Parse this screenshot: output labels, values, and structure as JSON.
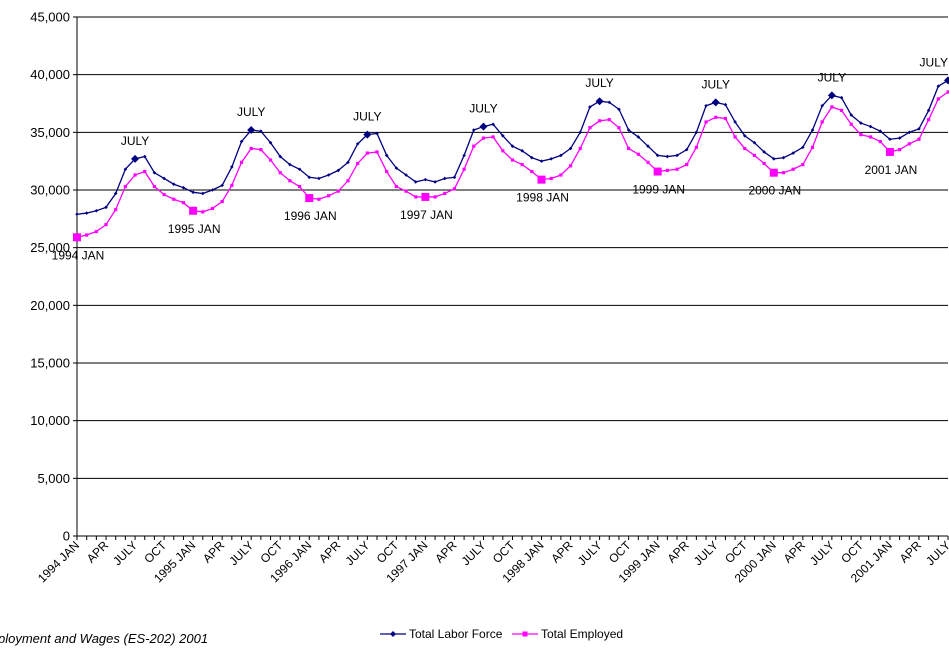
{
  "chart_data": {
    "type": "line",
    "title": "",
    "xlabel": "",
    "ylabel": "",
    "ylim": [
      0,
      45000
    ],
    "yticks": [
      0,
      5000,
      10000,
      15000,
      20000,
      25000,
      30000,
      35000,
      40000,
      45000
    ],
    "ytick_labels": [
      "0",
      "5,000",
      "10,000",
      "15,000",
      "20,000",
      "25,000",
      "30,000",
      "35,000",
      "40,000",
      "45,000"
    ],
    "grid": "horizontal",
    "legend_position": "bottom",
    "x_tick_labels": [
      {
        "index": 0,
        "label": "1994 JAN"
      },
      {
        "index": 3,
        "label": "APR"
      },
      {
        "index": 6,
        "label": "JULY"
      },
      {
        "index": 9,
        "label": "OCT"
      },
      {
        "index": 12,
        "label": "1995 JAN"
      },
      {
        "index": 15,
        "label": "APR"
      },
      {
        "index": 18,
        "label": "JULY"
      },
      {
        "index": 21,
        "label": "OCT"
      },
      {
        "index": 24,
        "label": "1996 JAN"
      },
      {
        "index": 27,
        "label": "APR"
      },
      {
        "index": 30,
        "label": "JULY"
      },
      {
        "index": 33,
        "label": "OCT"
      },
      {
        "index": 36,
        "label": "1997 JAN"
      },
      {
        "index": 39,
        "label": "APR"
      },
      {
        "index": 42,
        "label": "JULY"
      },
      {
        "index": 45,
        "label": "OCT"
      },
      {
        "index": 48,
        "label": "1998 JAN"
      },
      {
        "index": 51,
        "label": "APR"
      },
      {
        "index": 54,
        "label": "JULY"
      },
      {
        "index": 57,
        "label": "OCT"
      },
      {
        "index": 60,
        "label": "1999 JAN"
      },
      {
        "index": 63,
        "label": "APR"
      },
      {
        "index": 66,
        "label": "JULY"
      },
      {
        "index": 69,
        "label": "OCT"
      },
      {
        "index": 72,
        "label": "2000 JAN"
      },
      {
        "index": 75,
        "label": "APR"
      },
      {
        "index": 78,
        "label": "JULY"
      },
      {
        "index": 81,
        "label": "OCT"
      },
      {
        "index": 84,
        "label": "2001 JAN"
      },
      {
        "index": 87,
        "label": "APR"
      },
      {
        "index": 90,
        "label": "JULY"
      }
    ],
    "series": [
      {
        "name": "Total Labor Force",
        "color": "#000080",
        "marker": "diamond",
        "values": [
          27900,
          28000,
          28200,
          28500,
          29700,
          31800,
          32700,
          32900,
          31500,
          31000,
          30500,
          30200,
          29800,
          29700,
          30000,
          30400,
          32000,
          34200,
          35200,
          35100,
          34100,
          32900,
          32200,
          31800,
          31100,
          31000,
          31300,
          31700,
          32400,
          34000,
          34800,
          34900,
          33000,
          31900,
          31300,
          30700,
          30900,
          30700,
          31000,
          31100,
          33000,
          35200,
          35500,
          35700,
          34700,
          33800,
          33400,
          32800,
          32500,
          32700,
          33000,
          33600,
          35000,
          37200,
          37700,
          37600,
          37000,
          35200,
          34600,
          33800,
          33000,
          32900,
          33000,
          33500,
          35000,
          37300,
          37600,
          37400,
          35900,
          34700,
          34100,
          33300,
          32700,
          32800,
          33200,
          33700,
          35200,
          37300,
          38200,
          38000,
          36500,
          35800,
          35500,
          35100,
          34400,
          34500,
          35000,
          35300,
          36900,
          39000,
          39500
        ]
      },
      {
        "name": "Total Employed",
        "color": "#ff00ff",
        "marker": "square",
        "values": [
          25900,
          26100,
          26400,
          27000,
          28300,
          30300,
          31300,
          31600,
          30300,
          29600,
          29200,
          28900,
          28200,
          28100,
          28400,
          29000,
          30400,
          32400,
          33600,
          33500,
          32600,
          31500,
          30800,
          30300,
          29300,
          29200,
          29500,
          29900,
          30800,
          32300,
          33200,
          33300,
          31600,
          30300,
          29900,
          29400,
          29400,
          29400,
          29700,
          30100,
          31800,
          33800,
          34500,
          34600,
          33400,
          32600,
          32200,
          31600,
          30900,
          31000,
          31300,
          32100,
          33600,
          35400,
          36000,
          36100,
          35400,
          33600,
          33100,
          32400,
          31600,
          31700,
          31800,
          32200,
          33700,
          35900,
          36300,
          36200,
          34600,
          33600,
          33000,
          32300,
          31500,
          31500,
          31800,
          32200,
          33700,
          35900,
          37200,
          36900,
          35700,
          34800,
          34600,
          34200,
          33300,
          33500,
          34000,
          34400,
          36100,
          37900,
          38500
        ]
      }
    ],
    "annotations": [
      {
        "text": "1994 JAN",
        "index": 0,
        "series": "Total Employed",
        "pos": "below"
      },
      {
        "text": "JULY",
        "index": 6,
        "series": "Total Labor Force",
        "pos": "above"
      },
      {
        "text": "1995 JAN",
        "index": 12,
        "series": "Total Employed",
        "pos": "below"
      },
      {
        "text": "JULY",
        "index": 18,
        "series": "Total Labor Force",
        "pos": "above"
      },
      {
        "text": "1996 JAN",
        "index": 24,
        "series": "Total Employed",
        "pos": "below"
      },
      {
        "text": "JULY",
        "index": 30,
        "series": "Total Labor Force",
        "pos": "above"
      },
      {
        "text": "1997 JAN",
        "index": 36,
        "series": "Total Employed",
        "pos": "below"
      },
      {
        "text": "JULY",
        "index": 42,
        "series": "Total Labor Force",
        "pos": "above"
      },
      {
        "text": "1998 JAN",
        "index": 48,
        "series": "Total Employed",
        "pos": "below"
      },
      {
        "text": "JULY",
        "index": 54,
        "series": "Total Labor Force",
        "pos": "above"
      },
      {
        "text": "1999 JAN",
        "index": 60,
        "series": "Total Employed",
        "pos": "below"
      },
      {
        "text": "JULY",
        "index": 66,
        "series": "Total Labor Force",
        "pos": "above"
      },
      {
        "text": "2000 JAN",
        "index": 72,
        "series": "Total Employed",
        "pos": "below"
      },
      {
        "text": "JULY",
        "index": 78,
        "series": "Total Labor Force",
        "pos": "above"
      },
      {
        "text": "2001 JAN",
        "index": 84,
        "series": "Total Employed",
        "pos": "below"
      },
      {
        "text": "JULY",
        "index": 90,
        "series": "Total Labor Force",
        "pos": "above"
      }
    ]
  },
  "source_note": "ployment and Wages (ES-202) 2001"
}
